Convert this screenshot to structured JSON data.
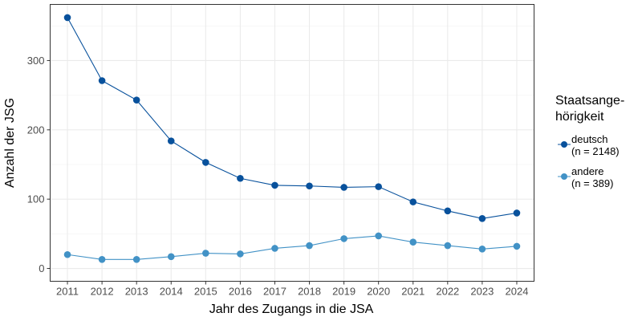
{
  "chart_data": {
    "type": "line",
    "xlabel": "Jahr des Zugangs in die JSA",
    "ylabel": "Anzahl der JSG",
    "x": [
      2011,
      2012,
      2013,
      2014,
      2015,
      2016,
      2017,
      2018,
      2019,
      2020,
      2021,
      2022,
      2023,
      2024
    ],
    "xlim": [
      2010.5,
      2024.5
    ],
    "ylim": [
      -18.5,
      381
    ],
    "yticks": [
      0,
      100,
      200,
      300
    ],
    "grid": true,
    "legend": {
      "title_line1": "Staatsange-",
      "title_line2": "hörigkeit",
      "placement": "right"
    },
    "series": [
      {
        "name": "deutsch",
        "name_line2": "(n = 2148)",
        "color": "#08519c",
        "values": [
          362,
          271,
          243,
          184,
          153,
          130,
          120,
          119,
          117,
          118,
          96,
          83,
          72,
          80
        ]
      },
      {
        "name": "andere",
        "name_line2": "(n = 389)",
        "color": "#4292c6",
        "values": [
          20,
          13,
          13,
          17,
          22,
          21,
          29,
          33,
          43,
          47,
          38,
          33,
          28,
          32
        ]
      }
    ]
  }
}
